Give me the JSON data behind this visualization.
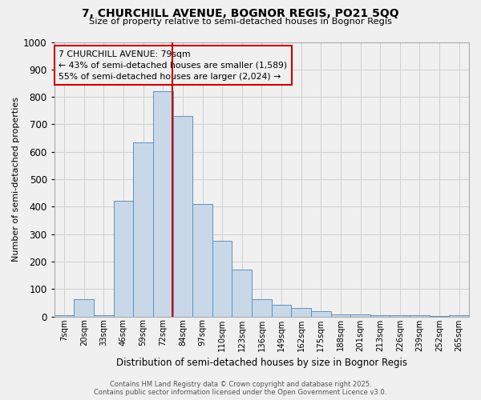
{
  "title1": "7, CHURCHILL AVENUE, BOGNOR REGIS, PO21 5QQ",
  "title2": "Size of property relative to semi-detached houses in Bognor Regis",
  "xlabel": "Distribution of semi-detached houses by size in Bognor Regis",
  "ylabel": "Number of semi-detached properties",
  "bin_labels": [
    "7sqm",
    "20sqm",
    "33sqm",
    "46sqm",
    "59sqm",
    "72sqm",
    "84sqm",
    "97sqm",
    "110sqm",
    "123sqm",
    "136sqm",
    "149sqm",
    "162sqm",
    "175sqm",
    "188sqm",
    "201sqm",
    "213sqm",
    "226sqm",
    "239sqm",
    "252sqm",
    "265sqm"
  ],
  "bar_heights": [
    5,
    63,
    5,
    420,
    635,
    820,
    730,
    410,
    275,
    170,
    63,
    42,
    30,
    18,
    7,
    7,
    5,
    3,
    3,
    2,
    5
  ],
  "bar_color": "#c8d8e8",
  "bar_edge_color": "#6090bb",
  "vline_x": 5.46,
  "vline_color": "#cc0000",
  "annotation_title": "7 CHURCHILL AVENUE: 79sqm",
  "annotation_line1": "← 43% of semi-detached houses are smaller (1,589)",
  "annotation_line2": "55% of semi-detached houses are larger (2,024) →",
  "annotation_box_color": "#cc0000",
  "ylim": [
    0,
    1000
  ],
  "yticks": [
    0,
    100,
    200,
    300,
    400,
    500,
    600,
    700,
    800,
    900,
    1000
  ],
  "footer1": "Contains HM Land Registry data © Crown copyright and database right 2025.",
  "footer2": "Contains public sector information licensed under the Open Government Licence v3.0.",
  "bg_color": "#f0f0f0",
  "grid_color": "#d0d0d0",
  "fig_width": 6.0,
  "fig_height": 5.0,
  "dpi": 100
}
